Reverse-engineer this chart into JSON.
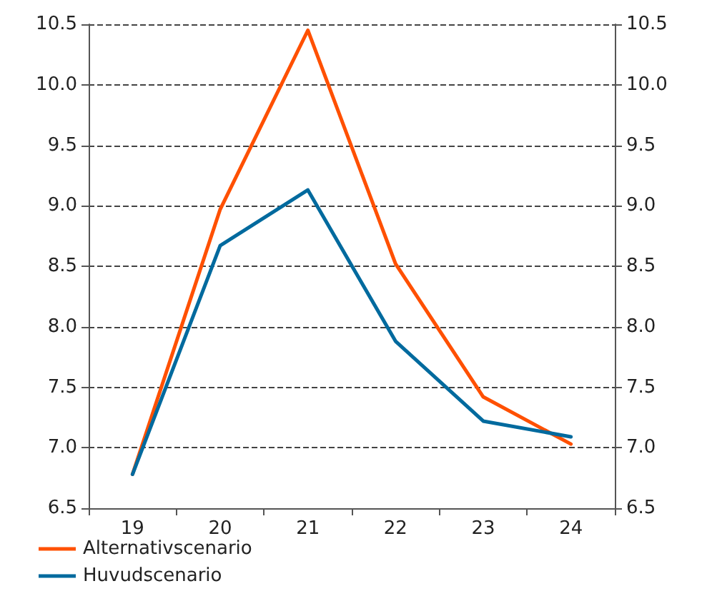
{
  "chart_data": {
    "type": "line",
    "categories": [
      "19",
      "20",
      "21",
      "22",
      "23",
      "24"
    ],
    "series": [
      {
        "name": "Alternativscenario",
        "color": "#ff5000",
        "values": [
          6.78,
          8.97,
          10.45,
          8.52,
          7.42,
          7.03
        ]
      },
      {
        "name": "Huvudscenario",
        "color": "#006a9e",
        "values": [
          6.78,
          8.67,
          9.13,
          7.88,
          7.22,
          7.09
        ]
      }
    ],
    "ylim": [
      6.5,
      10.5
    ],
    "yticks": [
      6.5,
      {
        "value": 7,
        "label": "7.0"
      },
      7.5,
      {
        "value": 8,
        "label": "8.0"
      },
      8.5,
      {
        "value": 9,
        "label": "9.0"
      },
      9.5,
      {
        "value": 10,
        "label": "10.0"
      },
      10.5
    ],
    "y2lim": [
      6.5,
      10.5
    ],
    "y2ticks": [
      6.5,
      {
        "value": 7,
        "label": "7.0"
      },
      7.5,
      {
        "value": 8,
        "label": "8.0"
      },
      8.5,
      {
        "value": 9,
        "label": "9.0"
      },
      9.5,
      {
        "value": 10,
        "label": "10.0"
      },
      10.5
    ],
    "grid": "y",
    "legend": "bottom left",
    "marker": "none",
    "line_style": "solid"
  }
}
